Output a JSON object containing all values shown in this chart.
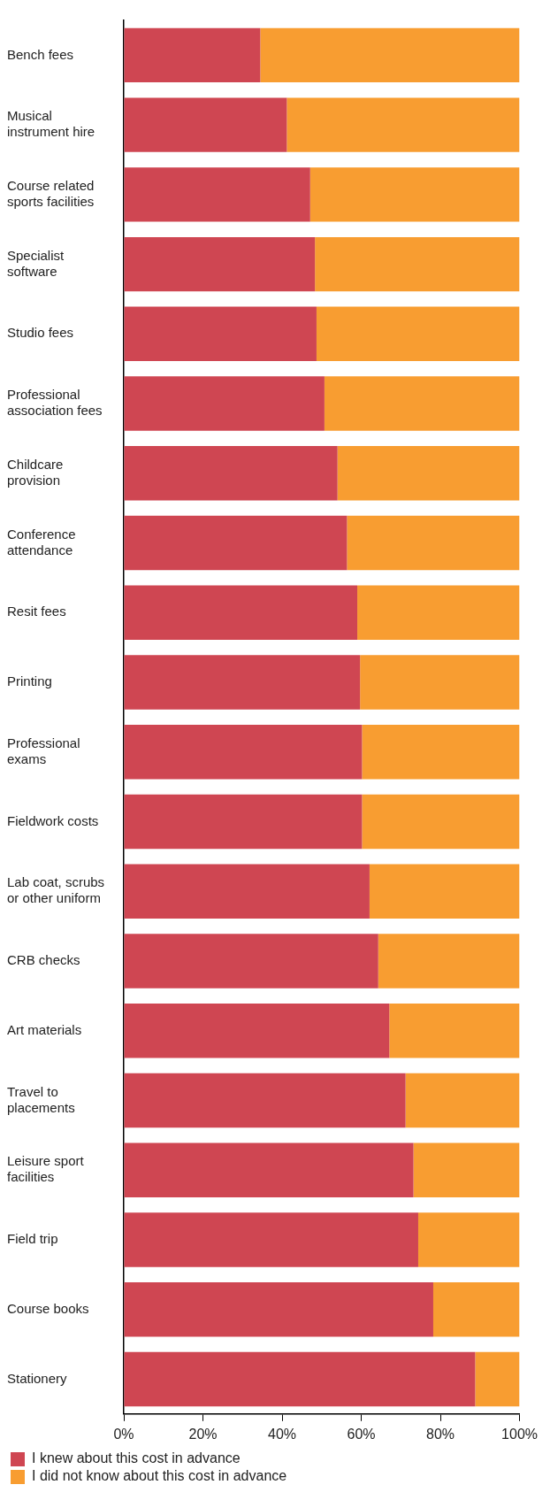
{
  "chart_data": {
    "type": "bar",
    "orientation": "horizontal",
    "stacked": true,
    "categories": [
      "Bench fees",
      "Musical instrument hire",
      "Course related sports facilities",
      "Specialist software",
      "Studio fees",
      "Professional association fees",
      "Childcare provision",
      "Conference attendance",
      "Resit fees",
      "Printing",
      "Professional exams",
      "Fieldwork costs",
      "Lab coat, scrubs or other uniform",
      "CRB checks",
      "Art materials",
      "Travel to placements",
      "Leisure sport facilities",
      "Field trip",
      "Course books",
      "Stationery"
    ],
    "series": [
      {
        "name": "I knew about this cost in advance",
        "color": "#cf4652",
        "values": [
          34.5,
          41.2,
          47.1,
          48.3,
          48.7,
          50.7,
          54,
          56.4,
          59,
          59.7,
          60.2,
          60.2,
          62.1,
          64.3,
          67.1,
          71.2,
          73.2,
          74.4,
          78.2,
          88.8
        ]
      },
      {
        "name": "I did not know about this cost in advance",
        "color": "#f89d31",
        "values": [
          65.5,
          58.8,
          52.9,
          51.7,
          51.3,
          49.3,
          46,
          43.6,
          41,
          40.3,
          39.8,
          39.8,
          37.9,
          35.7,
          32.9,
          28.8,
          26.8,
          25.6,
          21.8,
          11.2
        ]
      }
    ],
    "xlim": [
      0,
      100
    ],
    "xticks": [
      {
        "value": 0,
        "label": "0%"
      },
      {
        "value": 20,
        "label": "20%"
      },
      {
        "value": 40,
        "label": "40%"
      },
      {
        "value": 60,
        "label": "60%"
      },
      {
        "value": 80,
        "label": "80%"
      },
      {
        "value": 100,
        "label": "100%"
      }
    ],
    "grid": false,
    "legend": "bottom left"
  }
}
